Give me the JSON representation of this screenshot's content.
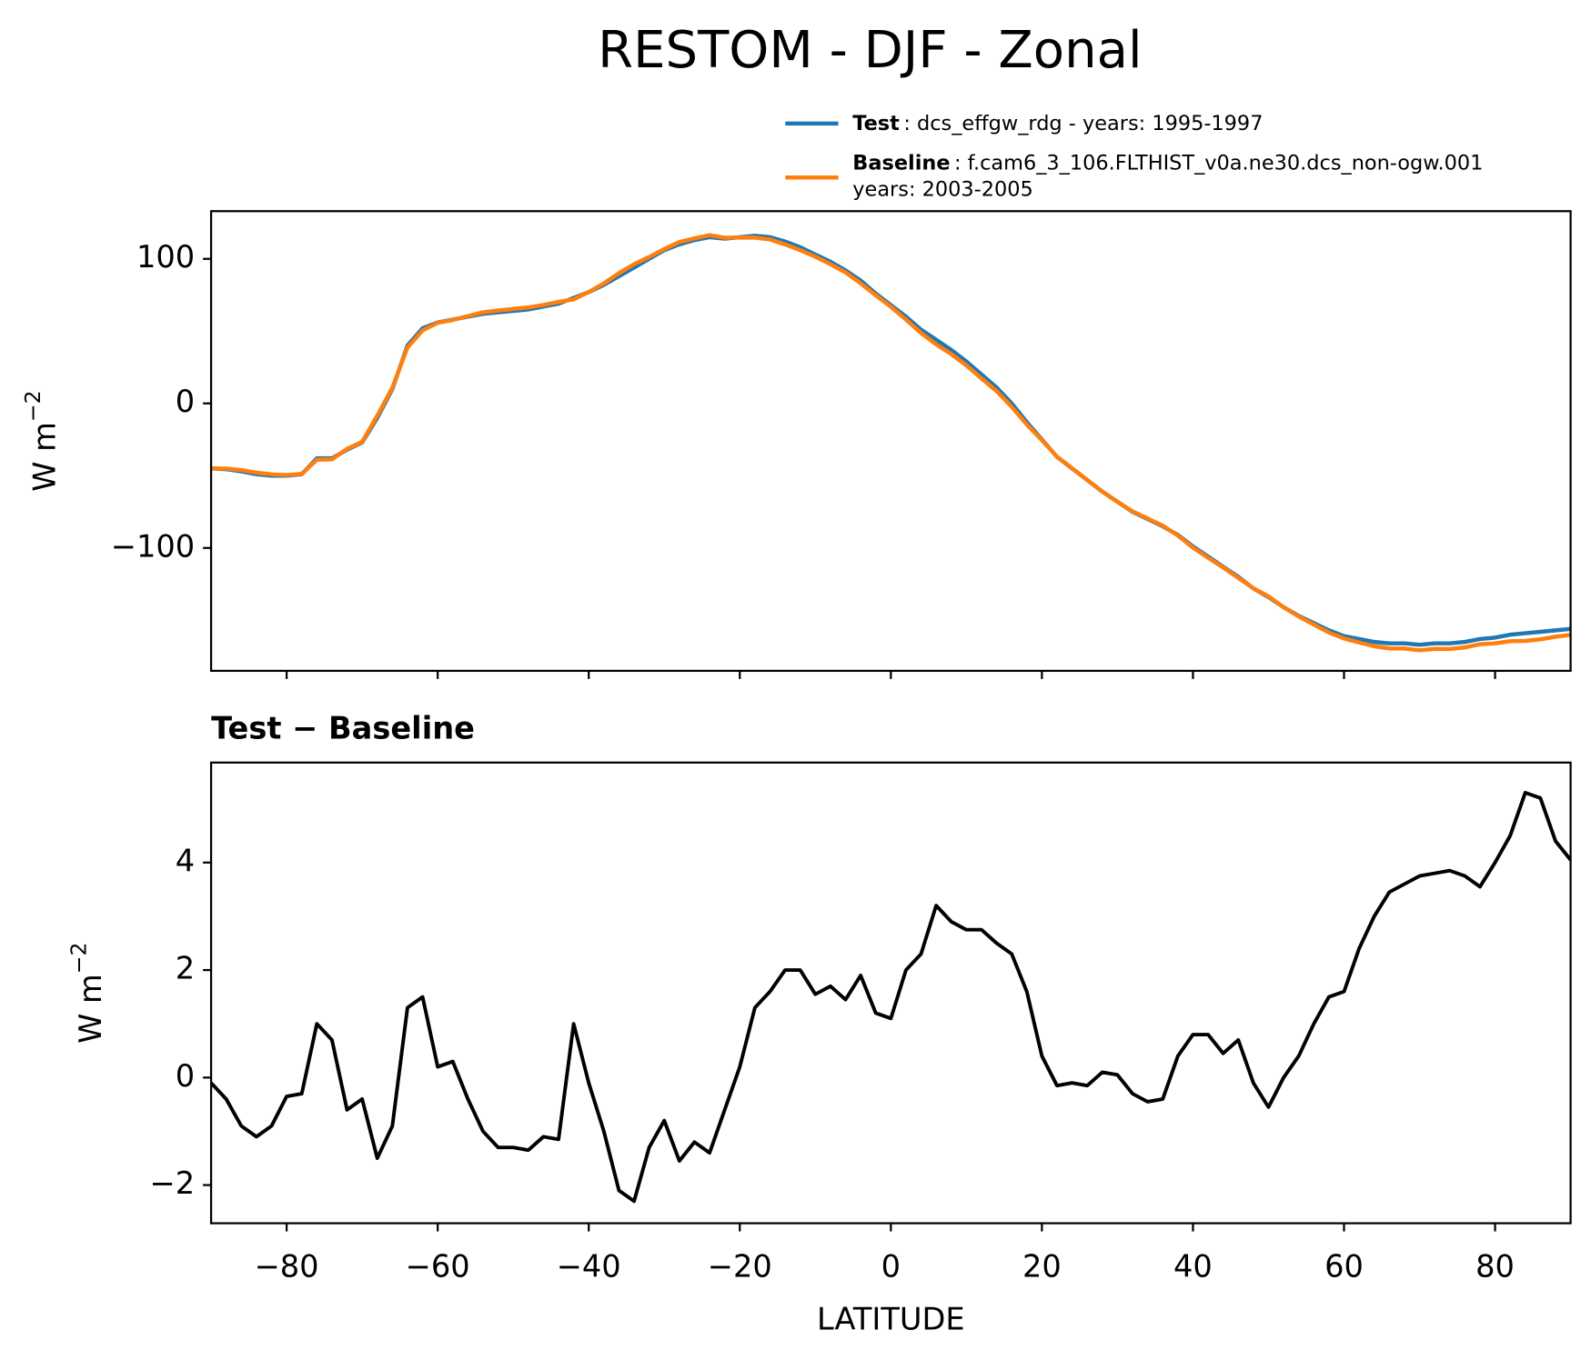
{
  "chart_data": [
    {
      "type": "line",
      "title": "RESTOM - DJF - Zonal",
      "ylabel": "W m",
      "ylabel_superscript": "−2",
      "x": [
        -90,
        -88,
        -86,
        -84,
        -82,
        -80,
        -78,
        -76,
        -74,
        -72,
        -70,
        -68,
        -66,
        -64,
        -62,
        -60,
        -58,
        -56,
        -54,
        -52,
        -50,
        -48,
        -46,
        -44,
        -42,
        -40,
        -38,
        -36,
        -34,
        -32,
        -30,
        -28,
        -26,
        -24,
        -22,
        -20,
        -18,
        -16,
        -14,
        -12,
        -10,
        -8,
        -6,
        -4,
        -2,
        0,
        2,
        4,
        6,
        8,
        10,
        12,
        14,
        16,
        18,
        20,
        22,
        24,
        26,
        28,
        30,
        32,
        34,
        36,
        38,
        40,
        42,
        44,
        46,
        48,
        50,
        52,
        54,
        56,
        58,
        60,
        62,
        64,
        66,
        68,
        70,
        72,
        74,
        76,
        78,
        80,
        82,
        84,
        86,
        88,
        90
      ],
      "series": [
        {
          "name": "Test",
          "description": ": dcs_effgw_rdg - years: 1995-1997",
          "color": "#1f77b4",
          "values": [
            -45,
            -45.5,
            -47,
            -49,
            -50,
            -50,
            -49,
            -38,
            -38,
            -32,
            -27,
            -10,
            10,
            40,
            52,
            56,
            58,
            60,
            62,
            63,
            64,
            65,
            67,
            69,
            73,
            77,
            82,
            88,
            94,
            100,
            106,
            110,
            113,
            115,
            114,
            115,
            116,
            115,
            112,
            108,
            103,
            98,
            92,
            85,
            76,
            68,
            60,
            51,
            44,
            37,
            29,
            20,
            11,
            0,
            -13,
            -25,
            -37,
            -45,
            -53,
            -61,
            -68,
            -75,
            -80,
            -85,
            -91,
            -99,
            -106,
            -113,
            -120,
            -128,
            -134,
            -141,
            -147,
            -152,
            -157,
            -161,
            -163,
            -165,
            -166,
            -166,
            -167,
            -166,
            -166,
            -165,
            -163,
            -162,
            -160,
            -159,
            -158,
            -157,
            -156
          ]
        },
        {
          "name": "Baseline",
          "description": [
            ": f.cam6_3_106.FLTHIST_v0a.ne30.dcs_non-ogw.001",
            "years: 2003-2005"
          ],
          "color": "#ff7f0e",
          "values": [
            -44.9,
            -45.1,
            -46.1,
            -47.9,
            -49.1,
            -49.6,
            -48.7,
            -39,
            -38.7,
            -31.4,
            -26.6,
            -8.5,
            10.9,
            38.7,
            50.5,
            55.8,
            57.7,
            60.4,
            63,
            64.3,
            65.3,
            66.4,
            68.1,
            70.2,
            72,
            77.1,
            83,
            90.1,
            96.3,
            101.3,
            106.8,
            111.6,
            114.2,
            116.4,
            114.6,
            114.8,
            114.7,
            113.4,
            110,
            106,
            101.5,
            96.3,
            90.6,
            83.1,
            74.8,
            66.9,
            58,
            48.7,
            40.8,
            34.1,
            26.3,
            17.3,
            8.5,
            -2.3,
            -14.6,
            -25.4,
            -36.9,
            -44.9,
            -52.9,
            -61.1,
            -68.1,
            -74.7,
            -79.6,
            -84.6,
            -91.4,
            -99.8,
            -106.8,
            -113.5,
            -120.7,
            -127.9,
            -133.5,
            -141,
            -147.4,
            -153,
            -158.5,
            -162.6,
            -165.4,
            -168,
            -169.5,
            -169.6,
            -170.8,
            -169.8,
            -169.9,
            -168.8,
            -166.6,
            -166,
            -164.5,
            -164.3,
            -163.2,
            -161.4,
            -160.1
          ]
        }
      ],
      "xlim": [
        -90,
        90
      ],
      "xticks": [
        -80,
        -60,
        -40,
        -20,
        0,
        20,
        40,
        60,
        80
      ],
      "ylim": [
        -185,
        133
      ],
      "yticks": [
        {
          "value": -100,
          "label": "−100"
        },
        0,
        100
      ]
    },
    {
      "type": "line",
      "title": "Test − Baseline",
      "xlabel": "LATITUDE",
      "ylabel": "W m",
      "ylabel_superscript": "−2",
      "color": "#000000",
      "x": [
        -90,
        -88,
        -86,
        -84,
        -82,
        -80,
        -78,
        -76,
        -74,
        -72,
        -70,
        -68,
        -66,
        -64,
        -62,
        -60,
        -58,
        -56,
        -54,
        -52,
        -50,
        -48,
        -46,
        -44,
        -42,
        -40,
        -38,
        -36,
        -34,
        -32,
        -30,
        -28,
        -26,
        -24,
        -22,
        -20,
        -18,
        -16,
        -14,
        -12,
        -10,
        -8,
        -6,
        -4,
        -2,
        0,
        2,
        4,
        6,
        8,
        10,
        12,
        14,
        16,
        18,
        20,
        22,
        24,
        26,
        28,
        30,
        32,
        34,
        36,
        38,
        40,
        42,
        44,
        46,
        48,
        50,
        52,
        54,
        56,
        58,
        60,
        62,
        64,
        66,
        68,
        70,
        72,
        74,
        76,
        78,
        80,
        82,
        84,
        86,
        88,
        90
      ],
      "values": [
        -0.1,
        -0.4,
        -0.9,
        -1.1,
        -0.9,
        -0.35,
        -0.3,
        1.0,
        0.7,
        -0.6,
        -0.4,
        -1.5,
        -0.9,
        1.3,
        1.5,
        0.2,
        0.3,
        -0.4,
        -1.0,
        -1.3,
        -1.3,
        -1.35,
        -1.1,
        -1.15,
        1.0,
        -0.1,
        -1.0,
        -2.1,
        -2.3,
        -1.3,
        -0.8,
        -1.55,
        -1.2,
        -1.4,
        -0.6,
        0.2,
        1.3,
        1.6,
        2.0,
        2.0,
        1.55,
        1.7,
        1.45,
        1.9,
        1.2,
        1.1,
        2.0,
        2.3,
        3.2,
        2.9,
        2.75,
        2.75,
        2.5,
        2.3,
        1.6,
        0.4,
        -0.15,
        -0.1,
        -0.15,
        0.1,
        0.05,
        -0.3,
        -0.45,
        -0.4,
        0.4,
        0.8,
        0.8,
        0.45,
        0.7,
        -0.1,
        -0.55,
        0.0,
        0.4,
        1.0,
        1.5,
        1.6,
        2.4,
        3.0,
        3.45,
        3.6,
        3.75,
        3.8,
        3.85,
        3.75,
        3.55,
        4.0,
        4.5,
        5.3,
        5.2,
        4.4,
        4.05
      ],
      "xlim": [
        -90,
        90
      ],
      "xticks": [
        {
          "value": -80,
          "label": "−80"
        },
        {
          "value": -60,
          "label": "−60"
        },
        {
          "value": -40,
          "label": "−40"
        },
        {
          "value": -20,
          "label": "−20"
        },
        0,
        20,
        40,
        60,
        80
      ],
      "ylim": [
        -2.71,
        5.86
      ],
      "yticks": [
        {
          "value": -2,
          "label": "−2"
        },
        0,
        2,
        4
      ]
    }
  ]
}
